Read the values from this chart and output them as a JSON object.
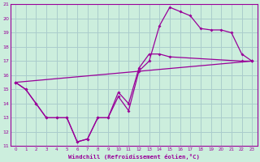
{
  "xlabel": "Windchill (Refroidissement éolien,°C)",
  "bg_color": "#cceedd",
  "grid_color": "#aacccc",
  "line_color": "#990099",
  "xlim": [
    -0.5,
    23.5
  ],
  "ylim": [
    11,
    21
  ],
  "yticks": [
    11,
    12,
    13,
    14,
    15,
    16,
    17,
    18,
    19,
    20,
    21
  ],
  "xticks": [
    0,
    1,
    2,
    3,
    4,
    5,
    6,
    7,
    8,
    9,
    10,
    11,
    12,
    13,
    14,
    15,
    16,
    17,
    18,
    19,
    20,
    21,
    22,
    23
  ],
  "line1_x": [
    0,
    1,
    2,
    3,
    4,
    5,
    6,
    7,
    8,
    9,
    10,
    11,
    12,
    13,
    14,
    15,
    16,
    17,
    18,
    19,
    20,
    21,
    22,
    23
  ],
  "line1_y": [
    15.5,
    15.0,
    14.0,
    13.0,
    13.0,
    13.0,
    11.3,
    11.5,
    13.0,
    13.0,
    14.5,
    13.5,
    16.3,
    17.0,
    19.5,
    20.8,
    20.5,
    20.2,
    19.3,
    19.2,
    19.2,
    19.0,
    17.5,
    17.0
  ],
  "line2_x": [
    0,
    1,
    2,
    3,
    4,
    5,
    6,
    7,
    8,
    9,
    10,
    11,
    12,
    13,
    14,
    15,
    22,
    23
  ],
  "line2_y": [
    15.5,
    15.0,
    14.0,
    13.0,
    13.0,
    13.0,
    11.3,
    11.5,
    13.0,
    13.0,
    14.8,
    14.0,
    16.5,
    17.5,
    17.5,
    17.3,
    17.0,
    17.0
  ],
  "line3_x": [
    0,
    23
  ],
  "line3_y": [
    15.5,
    17.0
  ]
}
